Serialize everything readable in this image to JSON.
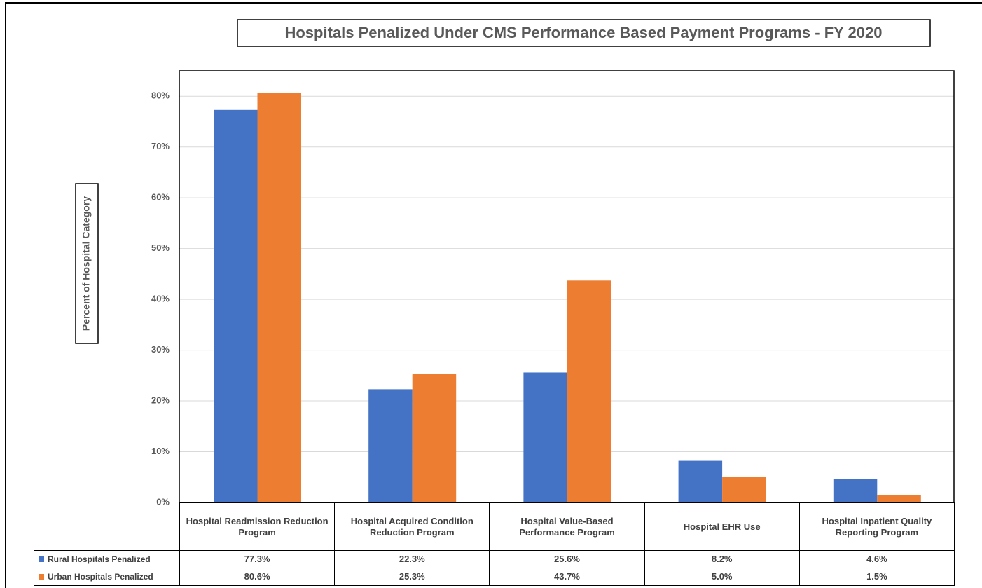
{
  "chart_data": {
    "type": "bar",
    "title": "Hospitals Penalized Under CMS Performance Based Payment Programs - FY 2020",
    "y_axis_label": "Percent of Hospital Category",
    "categories": [
      "Hospital Readmission Reduction Program",
      "Hospital Acquired Condition Reduction Program",
      "Hospital Value-Based Performance Program",
      "Hospital EHR Use",
      "Hospital Inpatient Quality Reporting Program"
    ],
    "series": [
      {
        "name": "Rural Hospitals Penalized",
        "color": "#4472c4",
        "values": [
          77.3,
          22.3,
          25.6,
          8.2,
          4.6
        ],
        "value_labels": [
          "77.3%",
          "22.3%",
          "25.6%",
          "8.2%",
          "4.6%"
        ]
      },
      {
        "name": "Urban Hospitals Penalized",
        "color": "#ed7d31",
        "values": [
          80.6,
          25.3,
          43.7,
          5.0,
          1.5
        ],
        "value_labels": [
          "80.6%",
          "25.3%",
          "43.7%",
          "5.0%",
          "1.5%"
        ]
      }
    ],
    "ylim": [
      0,
      85
    ],
    "yticks": [
      {
        "value": 0,
        "label": "0%"
      },
      {
        "value": 10,
        "label": "10%"
      },
      {
        "value": 20,
        "label": "20%"
      },
      {
        "value": 30,
        "label": "30%"
      },
      {
        "value": 40,
        "label": "40%"
      },
      {
        "value": 50,
        "label": "50%"
      },
      {
        "value": 60,
        "label": "60%"
      },
      {
        "value": 70,
        "label": "70%"
      },
      {
        "value": 80,
        "label": "80%"
      }
    ],
    "grid": true
  }
}
